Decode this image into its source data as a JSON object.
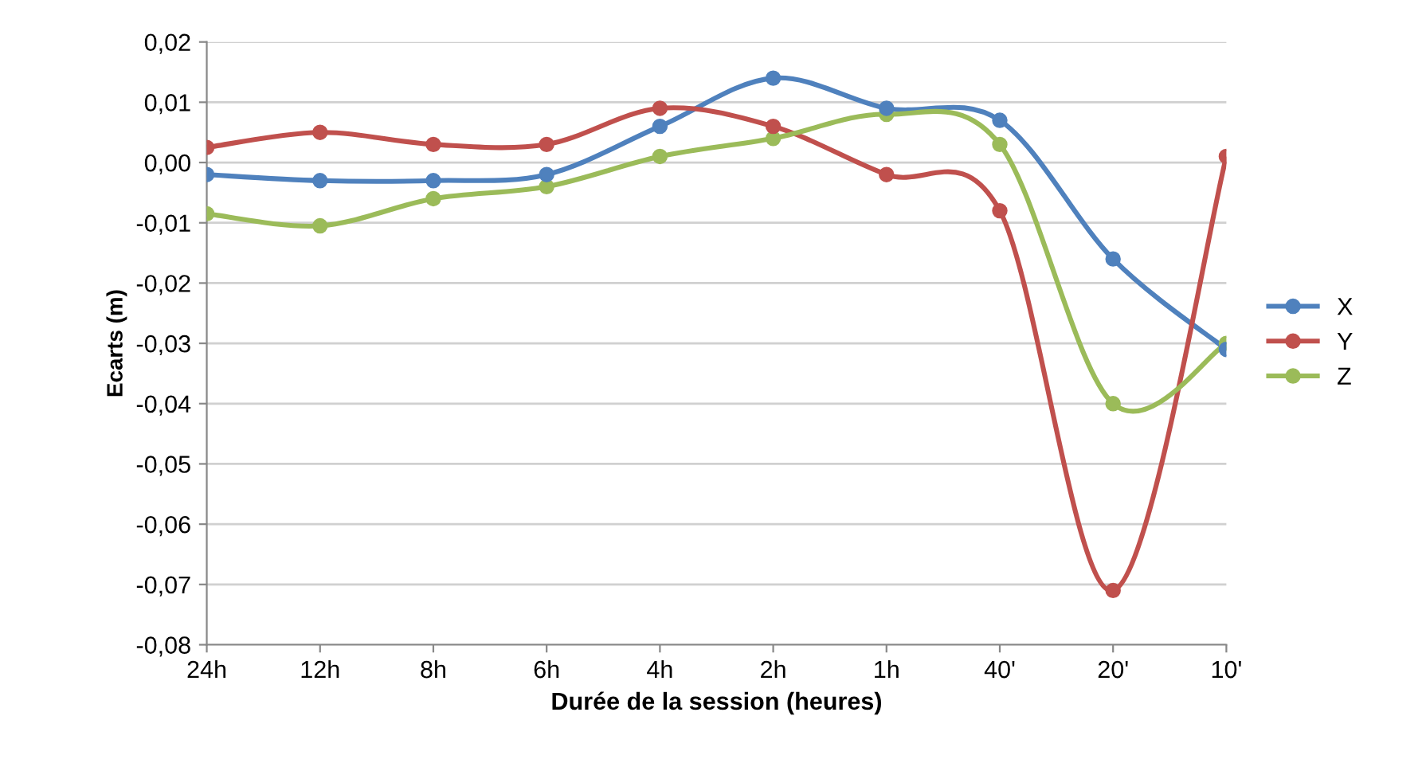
{
  "chart_data": {
    "type": "line",
    "xlabel": "Durée de la session (heures)",
    "ylabel": "Ecarts (m)",
    "categories": [
      "24h",
      "12h",
      "8h",
      "6h",
      "4h",
      "2h",
      "1h",
      "40'",
      "20'",
      "10'"
    ],
    "series": [
      {
        "name": "X",
        "color": "#4f81bd",
        "values": [
          -0.002,
          -0.003,
          -0.003,
          -0.002,
          0.006,
          0.014,
          0.009,
          0.007,
          -0.016,
          -0.031
        ]
      },
      {
        "name": "Y",
        "color": "#c0504d",
        "values": [
          0.0025,
          0.005,
          0.003,
          0.003,
          0.009,
          0.006,
          -0.002,
          -0.008,
          -0.071,
          0.001
        ]
      },
      {
        "name": "Z",
        "color": "#9bbb59",
        "values": [
          -0.0085,
          -0.0105,
          -0.006,
          -0.004,
          0.001,
          0.004,
          0.008,
          0.003,
          -0.04,
          -0.03
        ]
      }
    ],
    "ylim": [
      -0.08,
      0.02
    ],
    "yticks": [
      {
        "value": -0.08,
        "label": "-0,08"
      },
      {
        "value": -0.07,
        "label": "-0,07"
      },
      {
        "value": -0.06,
        "label": "-0,06"
      },
      {
        "value": -0.05,
        "label": "-0,05"
      },
      {
        "value": -0.04,
        "label": "-0,04"
      },
      {
        "value": -0.03,
        "label": "-0,03"
      },
      {
        "value": -0.02,
        "label": "-0,02"
      },
      {
        "value": -0.01,
        "label": "-0,01"
      },
      {
        "value": 0,
        "label": "0,00"
      },
      {
        "value": 0.01,
        "label": "0,01"
      },
      {
        "value": 0.02,
        "label": "0,02"
      }
    ],
    "grid": "y",
    "legend": "right",
    "marker": "circle",
    "line_style": "solid"
  }
}
